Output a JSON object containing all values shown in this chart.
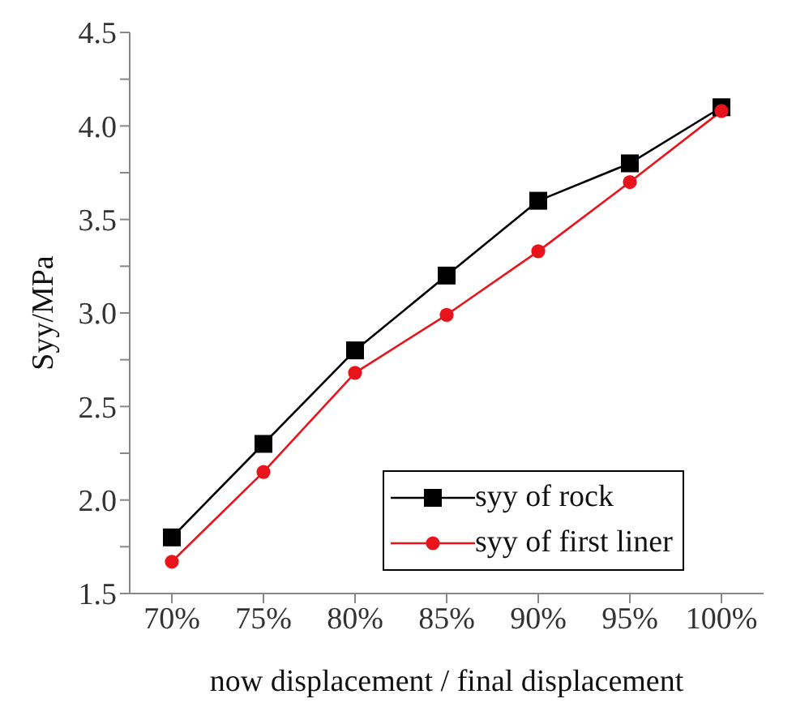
{
  "chart_data": {
    "type": "line",
    "xlabel": "now displacement / final displacement",
    "ylabel": "Syy/MPa",
    "categories": [
      "70%",
      "75%",
      "80%",
      "85%",
      "90%",
      "95%",
      "100%"
    ],
    "series": [
      {
        "name": "syy of rock",
        "color": "#000000",
        "marker": "square",
        "values": [
          1.8,
          2.3,
          2.8,
          3.2,
          3.6,
          3.8,
          4.1
        ]
      },
      {
        "name": "syy of first liner",
        "color": "#e8141c",
        "marker": "circle",
        "values": [
          1.67,
          2.15,
          2.68,
          2.99,
          3.33,
          3.7,
          4.08
        ]
      }
    ],
    "ylim": [
      1.5,
      4.5
    ],
    "yticks": [
      {
        "value": 1.5,
        "label": "1.5"
      },
      {
        "value": 1.75,
        "label": null
      },
      {
        "value": 2.0,
        "label": "2.0"
      },
      {
        "value": 2.25,
        "label": null
      },
      {
        "value": 2.5,
        "label": "2.5"
      },
      {
        "value": 2.75,
        "label": null
      },
      {
        "value": 3.0,
        "label": "3.0"
      },
      {
        "value": 3.25,
        "label": null
      },
      {
        "value": 3.5,
        "label": "3.5"
      },
      {
        "value": 3.75,
        "label": null
      },
      {
        "value": 4.0,
        "label": "4.0"
      },
      {
        "value": 4.25,
        "label": null
      },
      {
        "value": 4.5,
        "label": "4.5"
      }
    ],
    "legend": "bottom right",
    "grid": false
  }
}
